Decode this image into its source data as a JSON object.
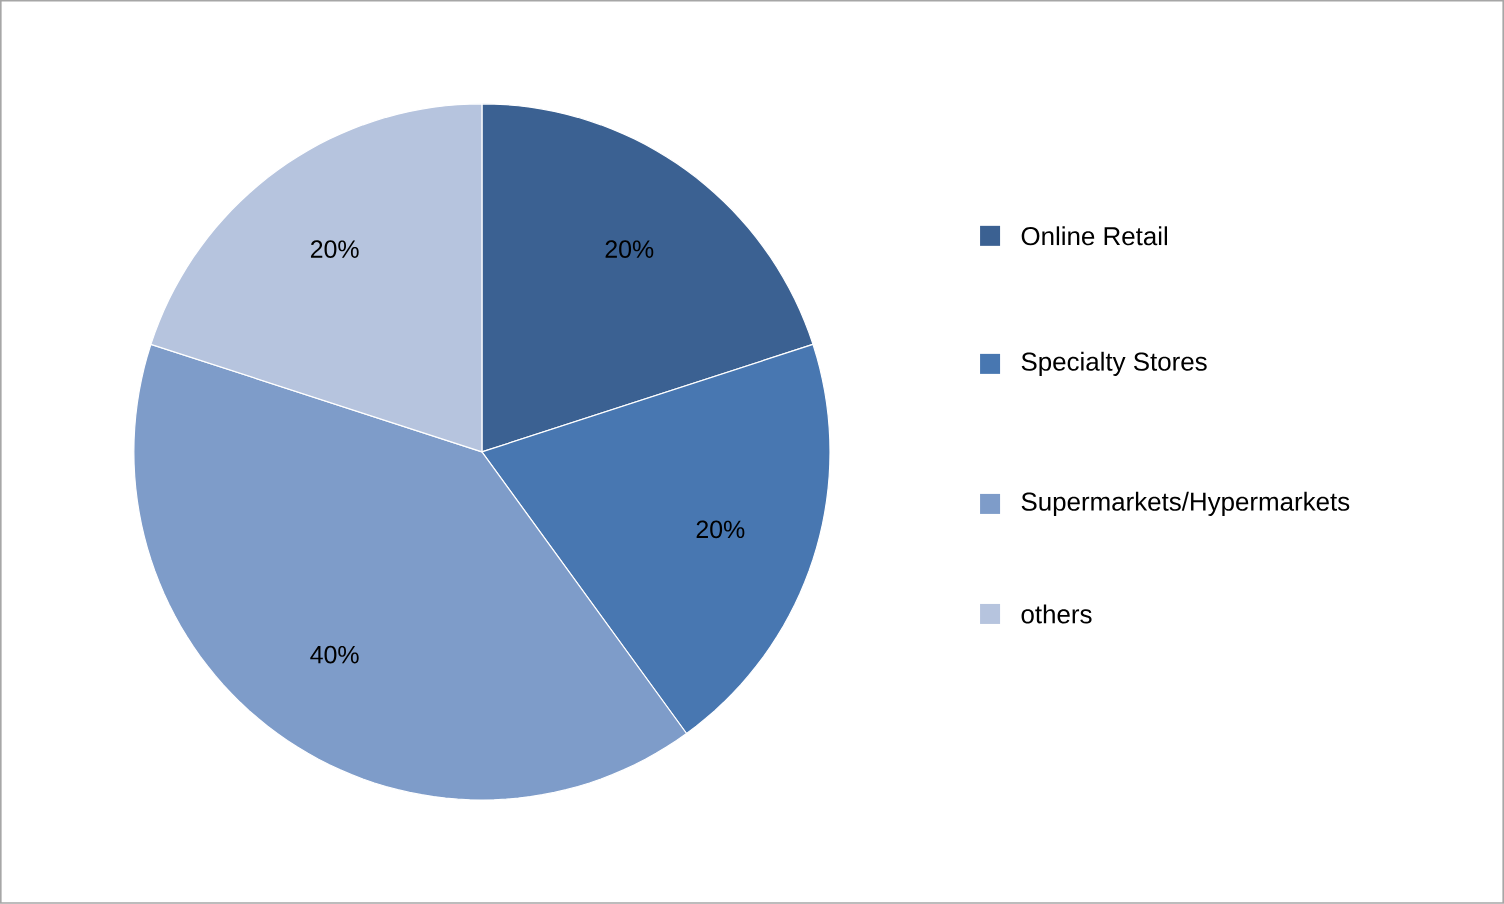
{
  "chart_data": {
    "type": "pie",
    "categories": [
      "Online Retail",
      "Specialty Stores",
      "Supermarkets/Hypermarkets",
      "others"
    ],
    "values": [
      20,
      20,
      40,
      20
    ],
    "colors": [
      "#3b6192",
      "#4877b1",
      "#7e9cc9",
      "#b6c4de"
    ],
    "value_labels": [
      "20%",
      "20%",
      "40%",
      "20%"
    ],
    "legend": "right"
  }
}
